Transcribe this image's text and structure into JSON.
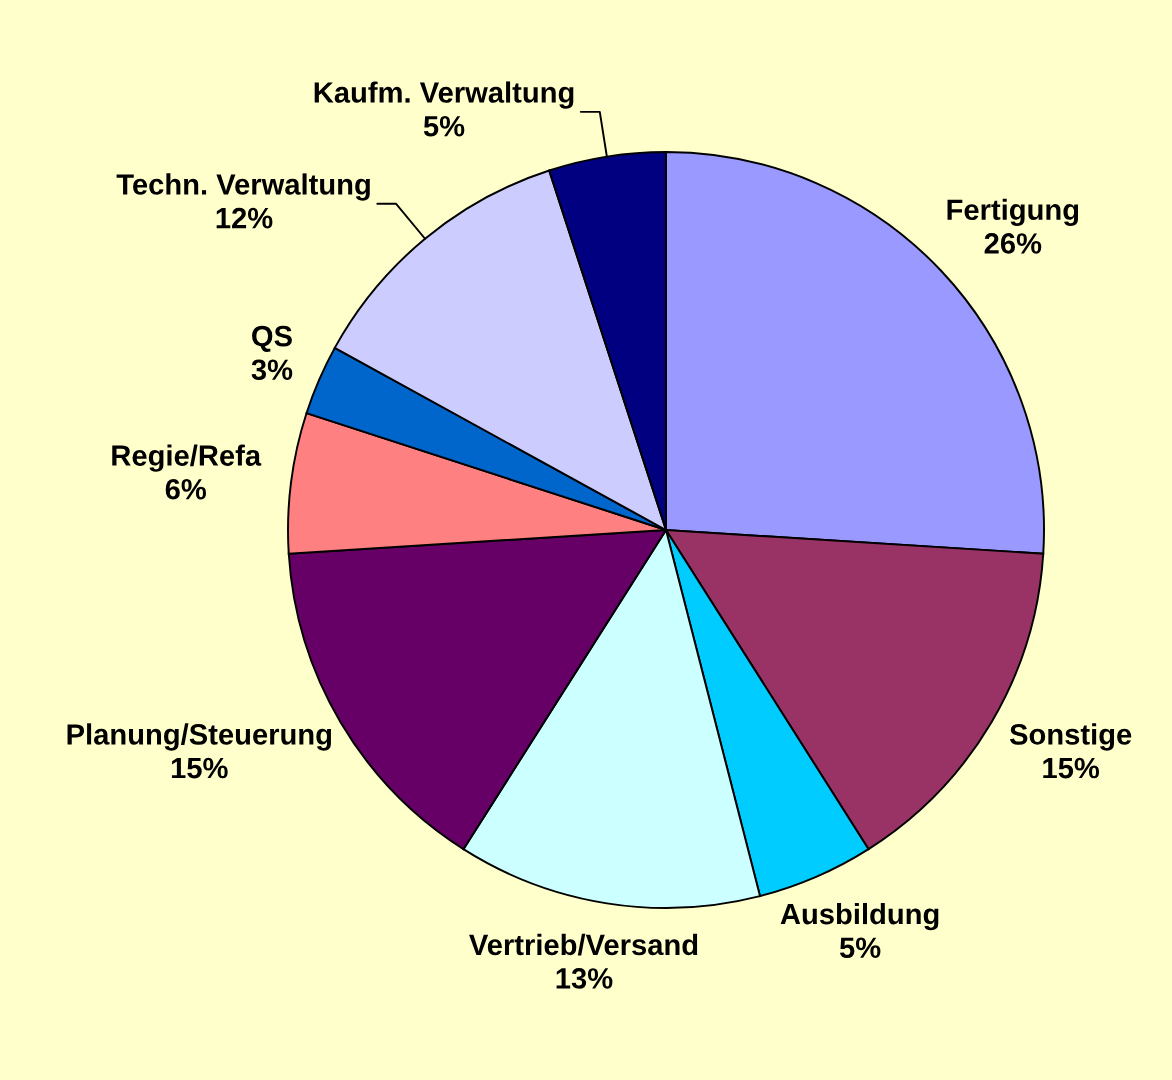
{
  "chart_data": {
    "type": "pie",
    "categories": [
      "Fertigung",
      "Sonstige",
      "Ausbildung",
      "Vertrieb/Versand",
      "Planung/Steuerung",
      "Regie/Refa",
      "QS",
      "Techn. Verwaltung",
      "Kaufm. Verwaltung"
    ],
    "values": [
      26,
      15,
      5,
      13,
      15,
      6,
      3,
      12,
      5
    ],
    "colors": [
      "#9999ff",
      "#993366",
      "#00ccff",
      "#ccffff",
      "#660066",
      "#ff8080",
      "#0066cc",
      "#ccccff",
      "#000080"
    ],
    "value_labels": [
      "26%",
      "15%",
      "5%",
      "13%",
      "15%",
      "6%",
      "3%",
      "12%",
      "5%"
    ]
  }
}
